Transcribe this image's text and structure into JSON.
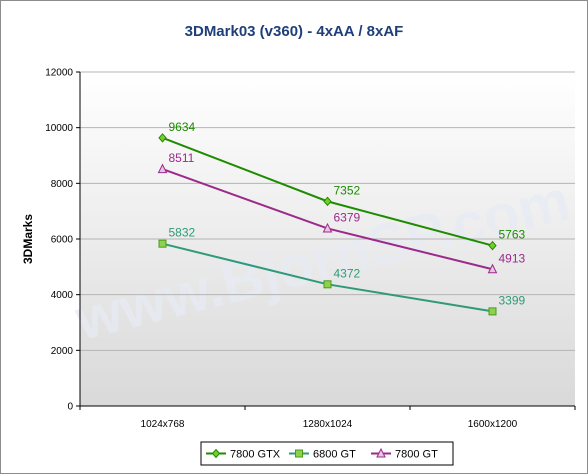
{
  "chart_data": {
    "type": "line",
    "title": "3DMark03 (v360) - 4xAA / 8xAF",
    "xlabel": "",
    "ylabel": "3DMarks",
    "categories": [
      "1024x768",
      "1280x1024",
      "1600x1200"
    ],
    "ylim": [
      0,
      12000
    ],
    "yticks": [
      0,
      2000,
      4000,
      6000,
      8000,
      10000,
      12000
    ],
    "grid": true,
    "legend_position": "bottom",
    "watermark": "www.BjornSP.com",
    "series": [
      {
        "name": "7800 GTX",
        "values": [
          9634,
          7352,
          5763
        ],
        "color": "#1e8c00",
        "marker": "diamond"
      },
      {
        "name": "6800 GT",
        "values": [
          5832,
          4372,
          3399
        ],
        "color": "#2e9a78",
        "marker": "square"
      },
      {
        "name": "7800 GT",
        "values": [
          8511,
          6379,
          4913
        ],
        "color": "#9b2a8a",
        "marker": "triangle"
      }
    ]
  }
}
